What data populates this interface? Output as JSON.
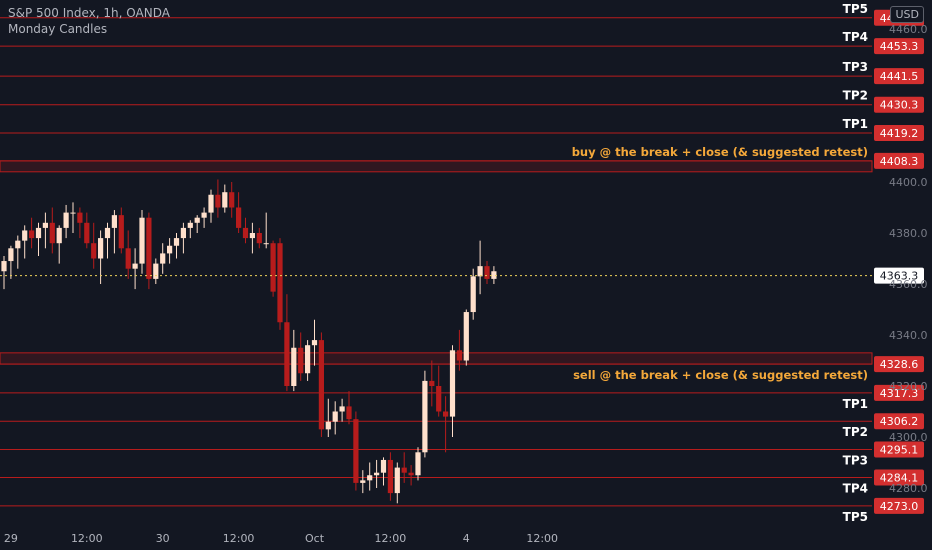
{
  "header": {
    "symbol_line": "S&P 500 Index, 1h, OANDA",
    "indicator": "Monday Candles",
    "currency": "USD"
  },
  "colors": {
    "background": "#131722",
    "level_line": "#b71c1c",
    "label_bg": "#d32f2f",
    "tp_text": "#ffffff",
    "note_text": "#f4a83a",
    "bull_fill": "#ffe0cc",
    "bear_fill": "#b71c1c",
    "current_line": "#f0d35a"
  },
  "chart_data": {
    "type": "candlestick",
    "y_axis_ticks": [
      4460.0,
      4400.0,
      4380.0,
      4360.0,
      4340.0,
      4320.0,
      4300.0,
      4280.0
    ],
    "x_axis_ticks": [
      {
        "label": "29",
        "i": 1
      },
      {
        "label": "12:00",
        "i": 12
      },
      {
        "label": "30",
        "i": 23
      },
      {
        "label": "12:00",
        "i": 34
      },
      {
        "label": "Oct",
        "i": 45
      },
      {
        "label": "12:00",
        "i": 56
      },
      {
        "label": "4",
        "i": 67
      },
      {
        "label": "12:00",
        "i": 78
      }
    ],
    "current_price": {
      "label": "4363.3",
      "value": 4363.3
    },
    "levels": [
      {
        "label": "TP5",
        "price_label": "4464.4",
        "value": 4464.4
      },
      {
        "label": "TP4",
        "price_label": "4453.3",
        "value": 4453.3
      },
      {
        "label": "TP3",
        "price_label": "4441.5",
        "value": 4441.5
      },
      {
        "label": "TP2",
        "price_label": "4430.3",
        "value": 4430.3
      },
      {
        "label": "TP1",
        "price_label": "4419.2",
        "value": 4419.2
      },
      {
        "label": "buy @ the break + close (& suggested retest)",
        "price_label": "4408.3",
        "value": 4408.3,
        "note": true
      },
      {
        "label": "sell @ the break + close (& suggested retest)",
        "price_label": "4328.6",
        "value": 4328.6,
        "note": true
      },
      {
        "label": "TP1",
        "price_label": "4317.3",
        "value": 4317.3
      },
      {
        "label": "TP2",
        "price_label": "4306.2",
        "value": 4306.2
      },
      {
        "label": "TP3",
        "price_label": "4295.1",
        "value": 4295.1
      },
      {
        "label": "TP4",
        "price_label": "4284.1",
        "value": 4284.1
      },
      {
        "label": "TP5",
        "price_label": "4273.0",
        "value": 4273.0
      }
    ],
    "zones": [
      {
        "from": 4404.0,
        "to": 4408.3
      },
      {
        "from": 4328.6,
        "to": 4333.0
      }
    ],
    "candles": [
      {
        "o": 4365,
        "h": 4371,
        "l": 4358,
        "c": 4369
      },
      {
        "o": 4369,
        "h": 4375,
        "l": 4362,
        "c": 4374
      },
      {
        "o": 4374,
        "h": 4379,
        "l": 4366,
        "c": 4377
      },
      {
        "o": 4377,
        "h": 4383,
        "l": 4370,
        "c": 4381
      },
      {
        "o": 4381,
        "h": 4386,
        "l": 4374,
        "c": 4378
      },
      {
        "o": 4378,
        "h": 4384,
        "l": 4371,
        "c": 4382
      },
      {
        "o": 4382,
        "h": 4388,
        "l": 4374,
        "c": 4384
      },
      {
        "o": 4384,
        "h": 4390,
        "l": 4372,
        "c": 4376
      },
      {
        "o": 4376,
        "h": 4383,
        "l": 4368,
        "c": 4382
      },
      {
        "o": 4382,
        "h": 4391,
        "l": 4378,
        "c": 4388
      },
      {
        "o": 4388,
        "h": 4392,
        "l": 4380,
        "c": 4388
      },
      {
        "o": 4388,
        "h": 4390,
        "l": 4378,
        "c": 4384
      },
      {
        "o": 4384,
        "h": 4388,
        "l": 4374,
        "c": 4376
      },
      {
        "o": 4376,
        "h": 4384,
        "l": 4366,
        "c": 4370
      },
      {
        "o": 4370,
        "h": 4381,
        "l": 4360,
        "c": 4378
      },
      {
        "o": 4378,
        "h": 4384,
        "l": 4370,
        "c": 4382
      },
      {
        "o": 4382,
        "h": 4389,
        "l": 4372,
        "c": 4387
      },
      {
        "o": 4387,
        "h": 4390,
        "l": 4372,
        "c": 4374
      },
      {
        "o": 4374,
        "h": 4381,
        "l": 4362,
        "c": 4366
      },
      {
        "o": 4366,
        "h": 4374,
        "l": 4358,
        "c": 4368
      },
      {
        "o": 4368,
        "h": 4389,
        "l": 4364,
        "c": 4386
      },
      {
        "o": 4386,
        "h": 4388,
        "l": 4358,
        "c": 4362
      },
      {
        "o": 4362,
        "h": 4370,
        "l": 4360,
        "c": 4368
      },
      {
        "o": 4368,
        "h": 4376,
        "l": 4364,
        "c": 4372
      },
      {
        "o": 4372,
        "h": 4378,
        "l": 4368,
        "c": 4375
      },
      {
        "o": 4375,
        "h": 4380,
        "l": 4370,
        "c": 4378
      },
      {
        "o": 4378,
        "h": 4384,
        "l": 4372,
        "c": 4382
      },
      {
        "o": 4382,
        "h": 4385,
        "l": 4378,
        "c": 4384
      },
      {
        "o": 4384,
        "h": 4387,
        "l": 4380,
        "c": 4386
      },
      {
        "o": 4386,
        "h": 4390,
        "l": 4382,
        "c": 4388
      },
      {
        "o": 4388,
        "h": 4397,
        "l": 4384,
        "c": 4395
      },
      {
        "o": 4395,
        "h": 4401,
        "l": 4386,
        "c": 4390
      },
      {
        "o": 4390,
        "h": 4399,
        "l": 4388,
        "c": 4396
      },
      {
        "o": 4396,
        "h": 4400,
        "l": 4386,
        "c": 4390
      },
      {
        "o": 4390,
        "h": 4396,
        "l": 4380,
        "c": 4382
      },
      {
        "o": 4382,
        "h": 4386,
        "l": 4376,
        "c": 4378
      },
      {
        "o": 4378,
        "h": 4384,
        "l": 4372,
        "c": 4380
      },
      {
        "o": 4380,
        "h": 4382,
        "l": 4374,
        "c": 4376
      },
      {
        "o": 4376,
        "h": 4388,
        "l": 4374,
        "c": 4376
      },
      {
        "o": 4376,
        "h": 4377,
        "l": 4355,
        "c": 4357
      },
      {
        "o": 4376,
        "h": 4378,
        "l": 4342,
        "c": 4345
      },
      {
        "o": 4345,
        "h": 4356,
        "l": 4318,
        "c": 4320
      },
      {
        "o": 4320,
        "h": 4342,
        "l": 4318,
        "c": 4335
      },
      {
        "o": 4335,
        "h": 4341,
        "l": 4322,
        "c": 4325
      },
      {
        "o": 4325,
        "h": 4338,
        "l": 4322,
        "c": 4336
      },
      {
        "o": 4336,
        "h": 4346,
        "l": 4328,
        "c": 4338
      },
      {
        "o": 4338,
        "h": 4341,
        "l": 4300,
        "c": 4303
      },
      {
        "o": 4303,
        "h": 4315,
        "l": 4300,
        "c": 4306
      },
      {
        "o": 4306,
        "h": 4314,
        "l": 4301,
        "c": 4310
      },
      {
        "o": 4310,
        "h": 4315,
        "l": 4306,
        "c": 4312
      },
      {
        "o": 4312,
        "h": 4318,
        "l": 4305,
        "c": 4307
      },
      {
        "o": 4307,
        "h": 4310,
        "l": 4279,
        "c": 4282
      },
      {
        "o": 4282,
        "h": 4287,
        "l": 4278,
        "c": 4283
      },
      {
        "o": 4283,
        "h": 4290,
        "l": 4279,
        "c": 4285
      },
      {
        "o": 4285,
        "h": 4291,
        "l": 4280,
        "c": 4286
      },
      {
        "o": 4286,
        "h": 4292,
        "l": 4281,
        "c": 4291
      },
      {
        "o": 4291,
        "h": 4294,
        "l": 4275,
        "c": 4278
      },
      {
        "o": 4278,
        "h": 4290,
        "l": 4274,
        "c": 4288
      },
      {
        "o": 4288,
        "h": 4294,
        "l": 4282,
        "c": 4286
      },
      {
        "o": 4286,
        "h": 4289,
        "l": 4281,
        "c": 4285
      },
      {
        "o": 4285,
        "h": 4296,
        "l": 4283,
        "c": 4294
      },
      {
        "o": 4294,
        "h": 4326,
        "l": 4292,
        "c": 4322
      },
      {
        "o": 4322,
        "h": 4330,
        "l": 4312,
        "c": 4320
      },
      {
        "o": 4320,
        "h": 4328,
        "l": 4308,
        "c": 4310
      },
      {
        "o": 4310,
        "h": 4316,
        "l": 4294,
        "c": 4308
      },
      {
        "o": 4308,
        "h": 4336,
        "l": 4300,
        "c": 4334
      },
      {
        "o": 4334,
        "h": 4342,
        "l": 4326,
        "c": 4330
      },
      {
        "o": 4330,
        "h": 4350,
        "l": 4328,
        "c": 4349
      },
      {
        "o": 4349,
        "h": 4366,
        "l": 4346,
        "c": 4363
      },
      {
        "o": 4363,
        "h": 4377,
        "l": 4356,
        "c": 4367
      },
      {
        "o": 4367,
        "h": 4369,
        "l": 4360,
        "c": 4362
      },
      {
        "o": 4362,
        "h": 4367,
        "l": 4360,
        "c": 4365
      }
    ]
  }
}
